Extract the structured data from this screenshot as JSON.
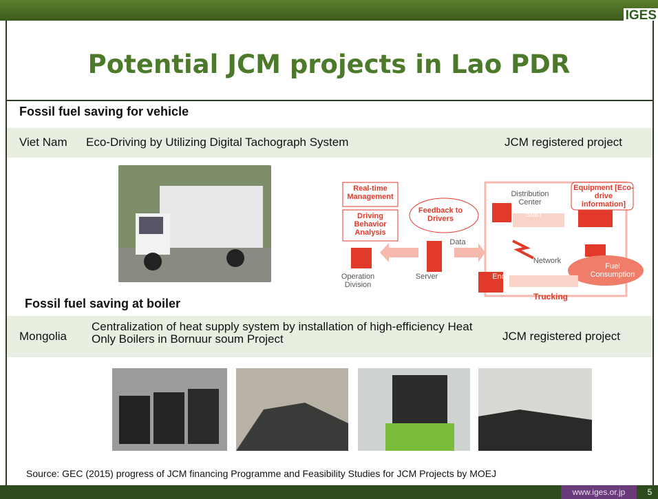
{
  "header": {
    "logo": "IGES"
  },
  "title": "Potential JCM projects in Lao PDR",
  "sections": [
    {
      "heading": "Fossil fuel saving for vehicle",
      "country": "Viet Nam",
      "project": "Eco-Driving by Utilizing Digital Tachograph System",
      "status": "JCM registered project"
    },
    {
      "heading": "Fossil fuel saving at boiler",
      "country": "Mongolia",
      "project": "Centralization of heat supply system by installation of high-efficiency Heat Only Boilers in Bornuur soum Project",
      "status": "JCM registered project"
    }
  ],
  "diagram": {
    "realtime": "Real-time Management",
    "behavior": "Driving Behavior Analysis",
    "feedback": "Feedback to Drivers",
    "data": "Data",
    "operation": "Operation Division",
    "server": "Server",
    "distribution": "Distribution Center",
    "start": "Start",
    "equipment": "Equipment [Eco-drive information]",
    "network": "Network",
    "end": "End",
    "fuel": "Fuel Consumption",
    "trucking": "Trucking"
  },
  "source": "Source: GEC (2015) progress of JCM financing Programme and Feasibility Studies for JCM Projects by MOEJ",
  "footer": {
    "url": "www.iges.or.jp",
    "page": "5"
  }
}
